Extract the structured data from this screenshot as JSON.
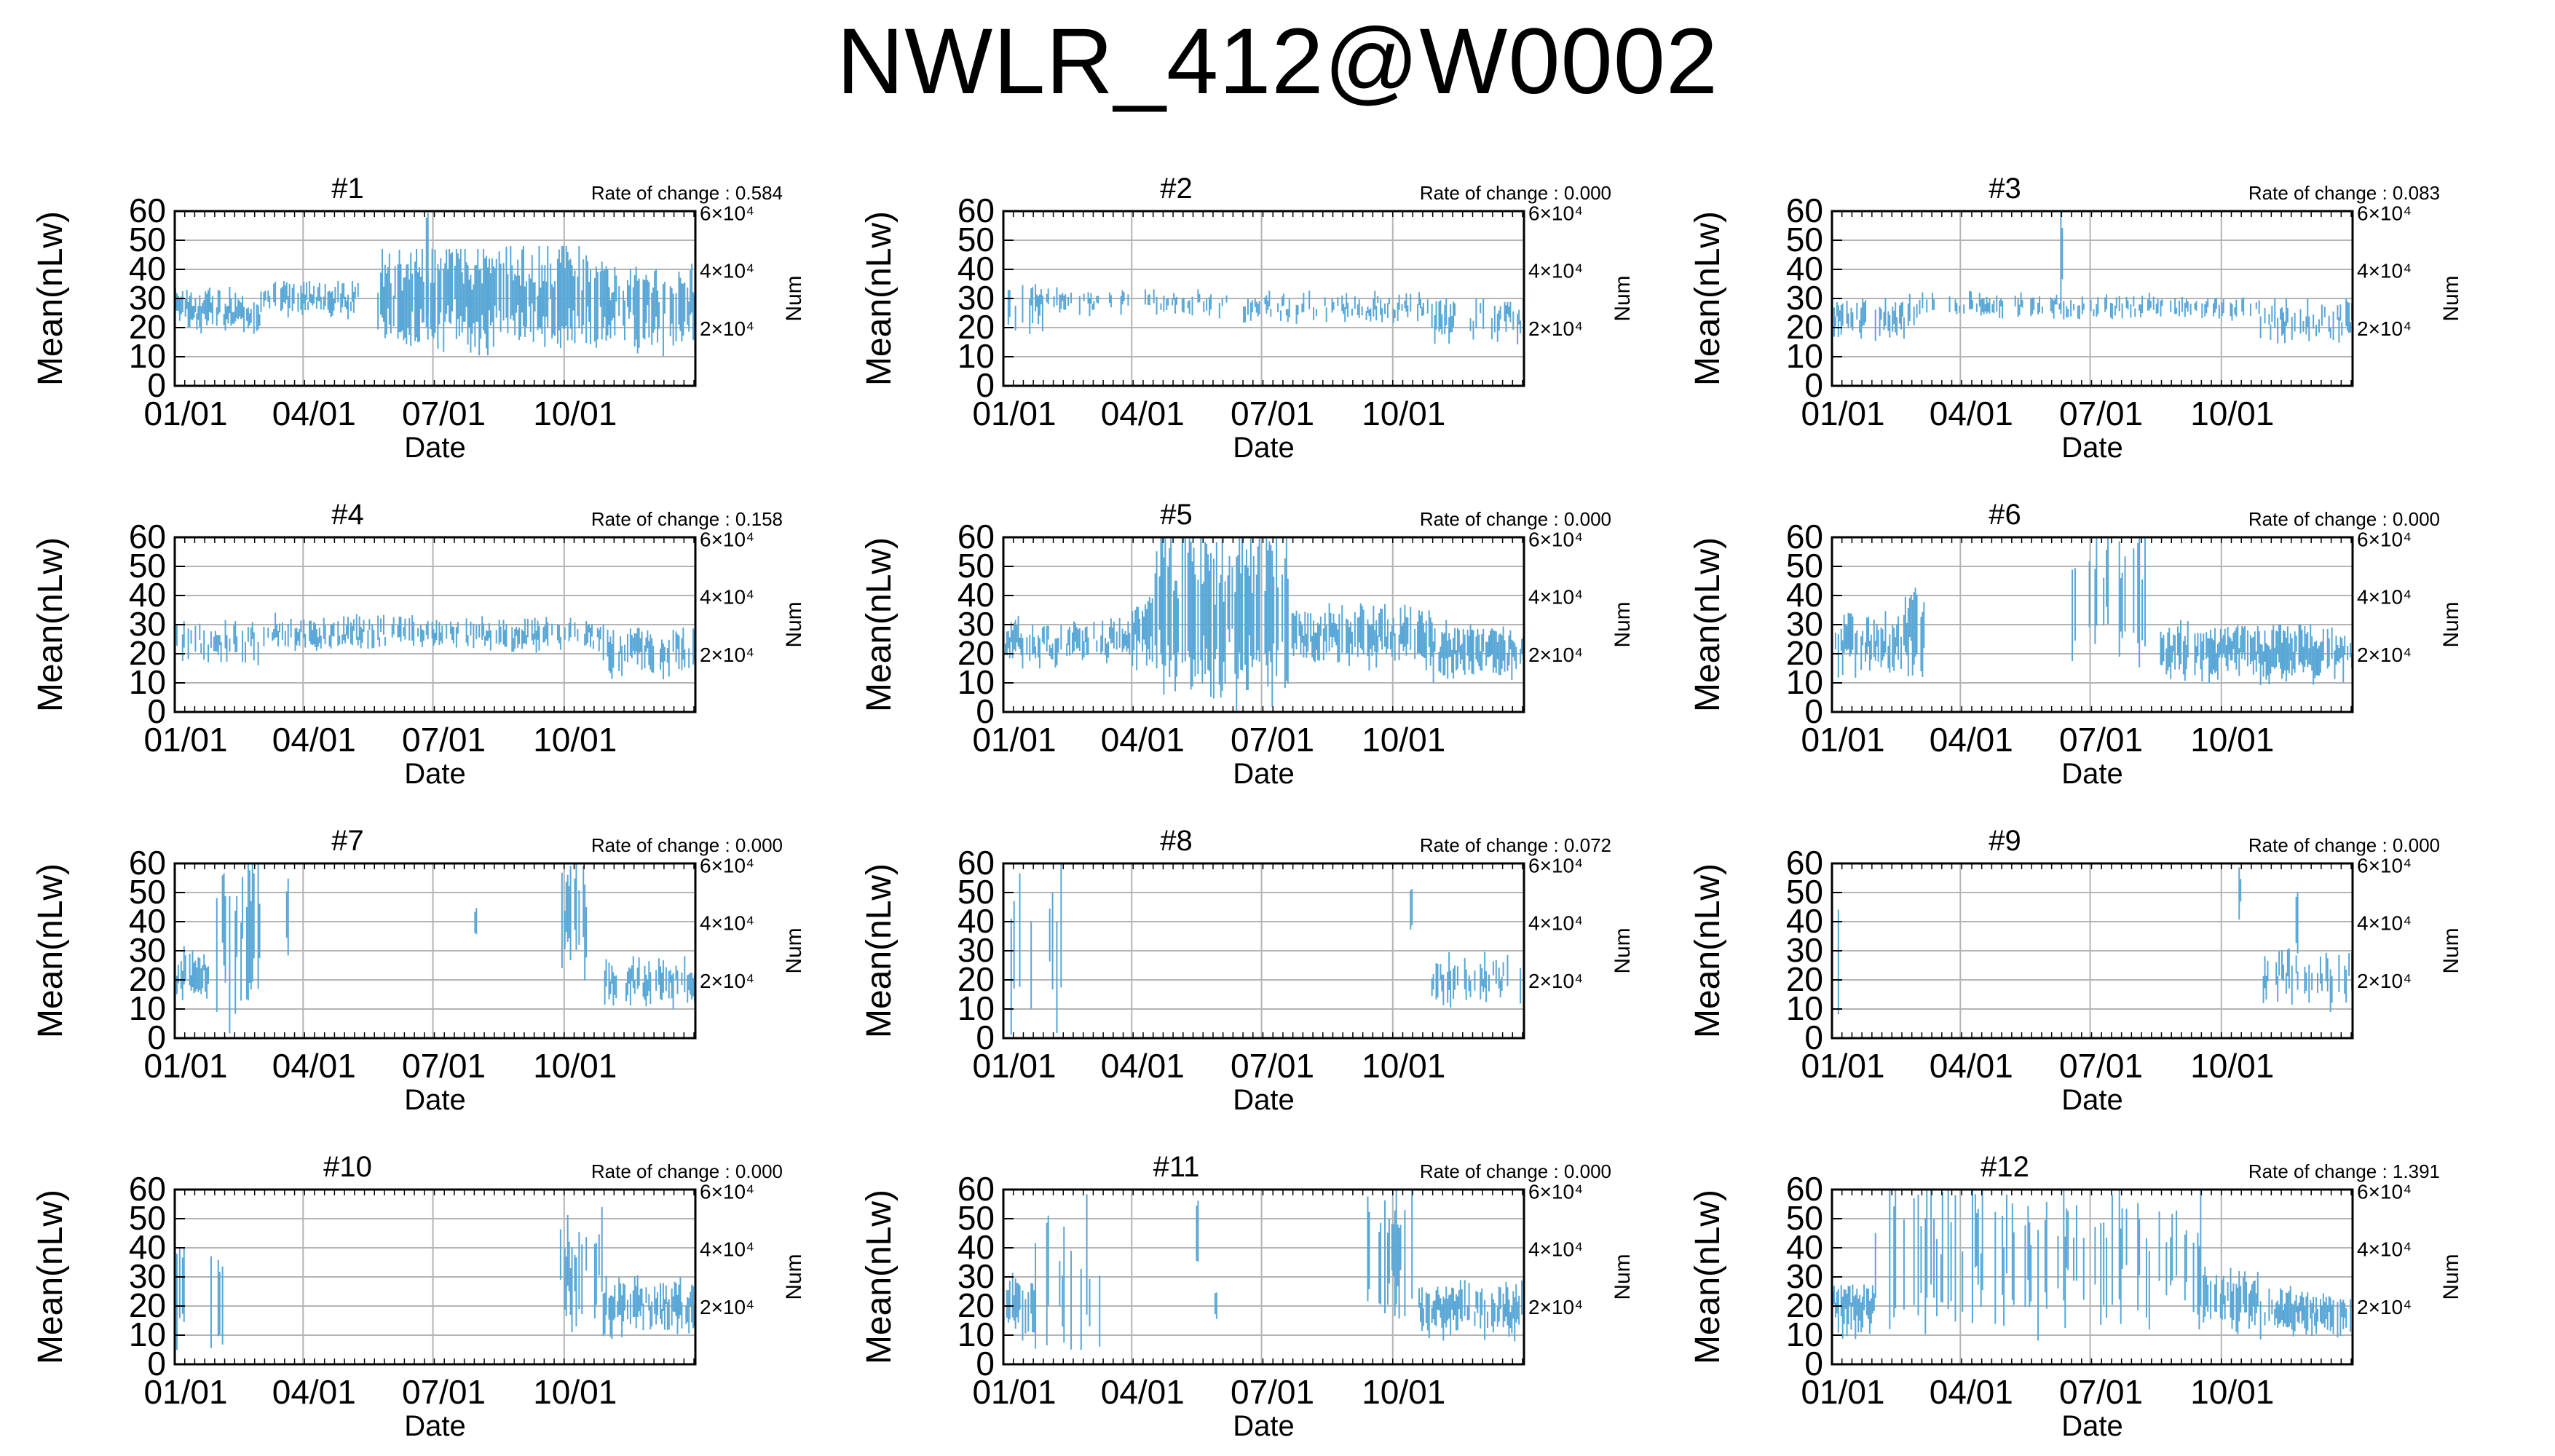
{
  "title": "NWLR_412@W0002",
  "colors": {
    "data": "#59a7d6",
    "grid": "#b4b4b4",
    "frame": "#000000"
  },
  "chart_data": [
    {
      "type": "line",
      "panel_title": "#1",
      "rate_text": "Rate of change : 0.584",
      "ylabel": "Mean(nLw)",
      "xlabel": "Date",
      "y2label": "Num",
      "ylim": [
        0,
        60
      ],
      "yticks": [
        0,
        10,
        20,
        30,
        40,
        50,
        60
      ],
      "xticks": [
        "01/01",
        "04/01",
        "07/01",
        "10/01"
      ],
      "y2ticks": [
        "6×10⁴",
        "4×10⁴",
        "2×10⁴"
      ],
      "series": [
        {
          "segments": [
            {
              "start": 0,
              "end": 60,
              "level": 26,
              "var": 4,
              "density": 0.8,
              "len": 5,
              "cap": 34
            },
            {
              "start": 60,
              "end": 130,
              "level": 30,
              "var": 3,
              "density": 0.8,
              "len": 4,
              "cap": 36
            },
            {
              "start": 142,
              "end": 220,
              "level": 30,
              "var": 6,
              "density": 0.9,
              "len": 15,
              "cap": 47
            },
            {
              "start": 220,
              "end": 300,
              "level": 31,
              "var": 6,
              "density": 0.9,
              "len": 14,
              "cap": 48
            },
            {
              "start": 300,
              "end": 365,
              "level": 28,
              "var": 6,
              "density": 0.8,
              "len": 12,
              "cap": 46
            },
            {
              "start": 176,
              "end": 178,
              "level": 38,
              "var": 1,
              "density": 1,
              "len": 20,
              "cap": 60
            },
            {
              "start": 268,
              "end": 270,
              "level": 35,
              "var": 1,
              "density": 1,
              "len": 16,
              "cap": 52
            }
          ]
        }
      ]
    },
    {
      "type": "line",
      "panel_title": "#2",
      "rate_text": "Rate of change : 0.000",
      "ylabel": "Mean(nLw)",
      "xlabel": "Date",
      "y2label": "Num",
      "ylim": [
        0,
        60
      ],
      "yticks": [
        0,
        10,
        20,
        30,
        40,
        50,
        60
      ],
      "xticks": [
        "01/01",
        "04/01",
        "07/01",
        "10/01"
      ],
      "y2ticks": [
        "6×10⁴",
        "4×10⁴",
        "2×10⁴"
      ],
      "series": [
        {
          "segments": [
            {
              "start": 0,
              "end": 30,
              "level": 27,
              "var": 4,
              "density": 0.5,
              "len": 6,
              "cap": 44
            },
            {
              "start": 30,
              "end": 150,
              "level": 29,
              "var": 2,
              "density": 0.45,
              "len": 3,
              "cap": 34
            },
            {
              "start": 150,
              "end": 300,
              "level": 27,
              "var": 3,
              "density": 0.5,
              "len": 3,
              "cap": 38
            },
            {
              "start": 300,
              "end": 365,
              "level": 23,
              "var": 4,
              "density": 0.5,
              "len": 5,
              "cap": 30
            }
          ]
        }
      ]
    },
    {
      "type": "line",
      "panel_title": "#3",
      "rate_text": "Rate of change : 0.083",
      "ylabel": "Mean(nLw)",
      "xlabel": "Date",
      "y2label": "Num",
      "ylim": [
        0,
        60
      ],
      "yticks": [
        0,
        10,
        20,
        30,
        40,
        50,
        60
      ],
      "xticks": [
        "01/01",
        "04/01",
        "07/01",
        "10/01"
      ],
      "y2ticks": [
        "6×10⁴",
        "4×10⁴",
        "2×10⁴"
      ],
      "series": [
        {
          "segments": [
            {
              "start": 0,
              "end": 60,
              "level": 23,
              "var": 4,
              "density": 0.6,
              "len": 5,
              "cap": 40
            },
            {
              "start": 60,
              "end": 160,
              "level": 28,
              "var": 2,
              "density": 0.5,
              "len": 3,
              "cap": 34
            },
            {
              "start": 160,
              "end": 162,
              "level": 45,
              "var": 1,
              "density": 1,
              "len": 25,
              "cap": 60
            },
            {
              "start": 162,
              "end": 300,
              "level": 27,
              "var": 2,
              "density": 0.55,
              "len": 3,
              "cap": 36
            },
            {
              "start": 300,
              "end": 365,
              "level": 22,
              "var": 4,
              "density": 0.6,
              "len": 5,
              "cap": 30
            }
          ]
        }
      ]
    },
    {
      "type": "line",
      "panel_title": "#4",
      "rate_text": "Rate of change : 0.158",
      "ylabel": "Mean(nLw)",
      "xlabel": "Date",
      "y2label": "Num",
      "ylim": [
        0,
        60
      ],
      "yticks": [
        0,
        10,
        20,
        30,
        40,
        50,
        60
      ],
      "xticks": [
        "01/01",
        "04/01",
        "07/01",
        "10/01"
      ],
      "y2ticks": [
        "6×10⁴",
        "4×10⁴",
        "2×10⁴"
      ],
      "series": [
        {
          "segments": [
            {
              "start": 0,
              "end": 60,
              "level": 24,
              "var": 4,
              "density": 0.65,
              "len": 5,
              "cap": 36
            },
            {
              "start": 60,
              "end": 230,
              "level": 27,
              "var": 3,
              "density": 0.6,
              "len": 4,
              "cap": 38
            },
            {
              "start": 230,
              "end": 300,
              "level": 26,
              "var": 3,
              "density": 0.65,
              "len": 4,
              "cap": 34
            },
            {
              "start": 300,
              "end": 365,
              "level": 21,
              "var": 4,
              "density": 0.7,
              "len": 6,
              "cap": 30
            }
          ]
        }
      ]
    },
    {
      "type": "line",
      "panel_title": "#5",
      "rate_text": "Rate of change : 0.000",
      "ylabel": "Mean(nLw)",
      "xlabel": "Date",
      "y2label": "Num",
      "ylim": [
        0,
        60
      ],
      "yticks": [
        0,
        10,
        20,
        30,
        40,
        50,
        60
      ],
      "xticks": [
        "01/01",
        "04/01",
        "07/01",
        "10/01"
      ],
      "y2ticks": [
        "6×10⁴",
        "4×10⁴",
        "2×10⁴"
      ],
      "series": [
        {
          "segments": [
            {
              "start": 0,
              "end": 90,
              "level": 24,
              "var": 4,
              "density": 0.75,
              "len": 5,
              "cap": 36
            },
            {
              "start": 90,
              "end": 105,
              "level": 28,
              "var": 4,
              "density": 0.8,
              "len": 10,
              "cap": 50
            },
            {
              "start": 105,
              "end": 200,
              "level": 34,
              "var": 8,
              "density": 0.7,
              "len": 25,
              "cap": 60
            },
            {
              "start": 200,
              "end": 300,
              "level": 26,
              "var": 4,
              "density": 0.8,
              "len": 8,
              "cap": 42
            },
            {
              "start": 300,
              "end": 365,
              "level": 21,
              "var": 4,
              "density": 0.8,
              "len": 7,
              "cap": 32
            }
          ]
        }
      ]
    },
    {
      "type": "line",
      "panel_title": "#6",
      "rate_text": "Rate of change : 0.000",
      "ylabel": "Mean(nLw)",
      "xlabel": "Date",
      "y2label": "Num",
      "ylim": [
        0,
        60
      ],
      "yticks": [
        0,
        10,
        20,
        30,
        40,
        50,
        60
      ],
      "xticks": [
        "01/01",
        "04/01",
        "07/01",
        "10/01"
      ],
      "y2ticks": [
        "6×10⁴",
        "4×10⁴",
        "2×10⁴"
      ],
      "series": [
        {
          "segments": [
            {
              "start": 0,
              "end": 50,
              "level": 23,
              "var": 5,
              "density": 0.8,
              "len": 7,
              "cap": 36
            },
            {
              "start": 50,
              "end": 70,
              "level": 28,
              "var": 5,
              "density": 0.7,
              "len": 12,
              "cap": 60
            },
            {
              "start": 165,
              "end": 230,
              "level": 40,
              "var": 8,
              "density": 0.3,
              "len": 22,
              "cap": 60
            },
            {
              "start": 230,
              "end": 300,
              "level": 21,
              "var": 4,
              "density": 0.8,
              "len": 7,
              "cap": 32
            },
            {
              "start": 300,
              "end": 365,
              "level": 20,
              "var": 4,
              "density": 0.8,
              "len": 7,
              "cap": 30
            }
          ]
        }
      ]
    },
    {
      "type": "line",
      "panel_title": "#7",
      "rate_text": "Rate of change : 0.000",
      "ylabel": "Mean(nLw)",
      "xlabel": "Date",
      "y2label": "Num",
      "ylim": [
        0,
        60
      ],
      "yticks": [
        0,
        10,
        20,
        30,
        40,
        50,
        60
      ],
      "xticks": [
        "01/01",
        "04/01",
        "07/01",
        "10/01"
      ],
      "y2ticks": [
        "6×10⁴",
        "4×10⁴",
        "2×10⁴"
      ],
      "series": [
        {
          "segments": [
            {
              "start": 0,
              "end": 25,
              "level": 22,
              "var": 4,
              "density": 0.8,
              "len": 6,
              "cap": 32
            },
            {
              "start": 25,
              "end": 60,
              "level": 35,
              "var": 10,
              "density": 0.5,
              "len": 22,
              "cap": 60
            },
            {
              "start": 78,
              "end": 80,
              "level": 42,
              "var": 1,
              "density": 1,
              "len": 16,
              "cap": 60
            },
            {
              "start": 210,
              "end": 212,
              "level": 40,
              "var": 1,
              "density": 1,
              "len": 8,
              "cap": 48
            },
            {
              "start": 270,
              "end": 290,
              "level": 42,
              "var": 6,
              "density": 0.5,
              "len": 16,
              "cap": 60
            },
            {
              "start": 300,
              "end": 365,
              "level": 19,
              "var": 4,
              "density": 0.6,
              "len": 6,
              "cap": 30
            }
          ]
        }
      ]
    },
    {
      "type": "line",
      "panel_title": "#8",
      "rate_text": "Rate of change : 0.072",
      "ylabel": "Mean(nLw)",
      "xlabel": "Date",
      "y2label": "Num",
      "ylim": [
        0,
        60
      ],
      "yticks": [
        0,
        10,
        20,
        30,
        40,
        50,
        60
      ],
      "xticks": [
        "01/01",
        "04/01",
        "07/01",
        "10/01"
      ],
      "y2ticks": [
        "6×10⁴",
        "4×10⁴",
        "2×10⁴"
      ],
      "series": [
        {
          "segments": [
            {
              "start": 0,
              "end": 60,
              "level": 30,
              "var": 10,
              "density": 0.12,
              "len": 20,
              "cap": 60
            },
            {
              "start": 300,
              "end": 365,
              "level": 20,
              "var": 4,
              "density": 0.5,
              "len": 6,
              "cap": 40
            },
            {
              "start": 285,
              "end": 287,
              "level": 45,
              "var": 1,
              "density": 1,
              "len": 14,
              "cap": 60
            }
          ]
        }
      ]
    },
    {
      "type": "line",
      "panel_title": "#9",
      "rate_text": "Rate of change : 0.000",
      "ylabel": "Mean(nLw)",
      "xlabel": "Date",
      "y2label": "Num",
      "ylim": [
        0,
        60
      ],
      "yticks": [
        0,
        10,
        20,
        30,
        40,
        50,
        60
      ],
      "xticks": [
        "01/01",
        "04/01",
        "07/01",
        "10/01"
      ],
      "y2ticks": [
        "6×10⁴",
        "4×10⁴",
        "2×10⁴"
      ],
      "series": [
        {
          "segments": [
            {
              "start": 0,
              "end": 30,
              "level": 25,
              "var": 10,
              "density": 0.12,
              "len": 18,
              "cap": 60
            },
            {
              "start": 285,
              "end": 287,
              "level": 50,
              "var": 1,
              "density": 1,
              "len": 10,
              "cap": 60
            },
            {
              "start": 300,
              "end": 365,
              "level": 21,
              "var": 5,
              "density": 0.4,
              "len": 7,
              "cap": 40
            },
            {
              "start": 325,
              "end": 327,
              "level": 40,
              "var": 1,
              "density": 1,
              "len": 20,
              "cap": 60
            }
          ]
        }
      ]
    },
    {
      "type": "line",
      "panel_title": "#10",
      "rate_text": "Rate of change : 0.000",
      "ylabel": "Mean(nLw)",
      "xlabel": "Date",
      "y2label": "Num",
      "ylim": [
        0,
        60
      ],
      "yticks": [
        0,
        10,
        20,
        30,
        40,
        50,
        60
      ],
      "xticks": [
        "01/01",
        "04/01",
        "07/01",
        "10/01"
      ],
      "y2ticks": [
        "6×10⁴",
        "4×10⁴",
        "2×10⁴"
      ],
      "series": [
        {
          "segments": [
            {
              "start": 0,
              "end": 40,
              "level": 25,
              "var": 8,
              "density": 0.3,
              "len": 15,
              "cap": 60
            },
            {
              "start": 270,
              "end": 300,
              "level": 32,
              "var": 8,
              "density": 0.55,
              "len": 16,
              "cap": 60
            },
            {
              "start": 300,
              "end": 365,
              "level": 20,
              "var": 4,
              "density": 0.7,
              "len": 7,
              "cap": 40
            }
          ]
        }
      ]
    },
    {
      "type": "line",
      "panel_title": "#11",
      "rate_text": "Rate of change : 0.000",
      "ylabel": "Mean(nLw)",
      "xlabel": "Date",
      "y2label": "Num",
      "ylim": [
        0,
        60
      ],
      "yticks": [
        0,
        10,
        20,
        30,
        40,
        50,
        60
      ],
      "xticks": [
        "01/01",
        "04/01",
        "07/01",
        "10/01"
      ],
      "y2ticks": [
        "6×10⁴",
        "4×10⁴",
        "2×10⁴"
      ],
      "series": [
        {
          "segments": [
            {
              "start": 0,
              "end": 20,
              "level": 20,
              "var": 4,
              "density": 0.8,
              "len": 8,
              "cap": 34
            },
            {
              "start": 20,
              "end": 70,
              "level": 28,
              "var": 10,
              "density": 0.3,
              "len": 20,
              "cap": 60
            },
            {
              "start": 135,
              "end": 137,
              "level": 45,
              "var": 1,
              "density": 1,
              "len": 10,
              "cap": 60
            },
            {
              "start": 148,
              "end": 150,
              "level": 20,
              "var": 1,
              "density": 1,
              "len": 10,
              "cap": 30
            },
            {
              "start": 255,
              "end": 290,
              "level": 35,
              "var": 8,
              "density": 0.5,
              "len": 18,
              "cap": 60
            },
            {
              "start": 290,
              "end": 365,
              "level": 19,
              "var": 4,
              "density": 0.8,
              "len": 7,
              "cap": 34
            }
          ]
        }
      ]
    },
    {
      "type": "line",
      "panel_title": "#12",
      "rate_text": "Rate of change : 1.391",
      "ylabel": "Mean(nLw)",
      "xlabel": "Date",
      "y2label": "Num",
      "ylim": [
        0,
        60
      ],
      "yticks": [
        0,
        10,
        20,
        30,
        40,
        50,
        60
      ],
      "xticks": [
        "01/01",
        "04/01",
        "07/01",
        "10/01"
      ],
      "y2ticks": [
        "6×10⁴",
        "4×10⁴",
        "2×10⁴"
      ],
      "series": [
        {
          "segments": [
            {
              "start": 0,
              "end": 30,
              "level": 20,
              "var": 4,
              "density": 0.8,
              "len": 7,
              "cap": 34
            },
            {
              "start": 30,
              "end": 100,
              "level": 38,
              "var": 10,
              "density": 0.35,
              "len": 22,
              "cap": 60
            },
            {
              "start": 100,
              "end": 140,
              "level": 36,
              "var": 10,
              "density": 0.3,
              "len": 22,
              "cap": 60
            },
            {
              "start": 140,
              "end": 260,
              "level": 34,
              "var": 10,
              "density": 0.35,
              "len": 20,
              "cap": 60
            },
            {
              "start": 260,
              "end": 300,
              "level": 22,
              "var": 4,
              "density": 0.75,
              "len": 8,
              "cap": 40
            },
            {
              "start": 300,
              "end": 365,
              "level": 18,
              "var": 3,
              "density": 0.8,
              "len": 6,
              "cap": 30
            }
          ]
        }
      ]
    }
  ]
}
